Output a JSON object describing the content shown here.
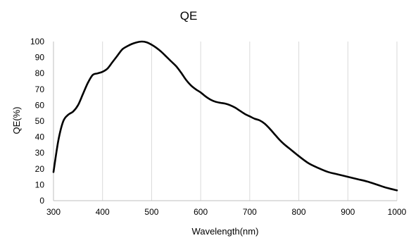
{
  "chart_data": {
    "type": "line",
    "title": "QE",
    "xlabel": "Wavelength(nm)",
    "ylabel": "QE(%)",
    "xlim": [
      300,
      1000
    ],
    "ylim": [
      0,
      100
    ],
    "x_ticks": [
      300,
      400,
      500,
      600,
      700,
      800,
      900,
      1000
    ],
    "y_ticks": [
      0,
      10,
      20,
      30,
      40,
      50,
      60,
      70,
      80,
      90,
      100
    ],
    "grid": "vertical",
    "series_color": "#000000",
    "series": [
      {
        "x": [
          300,
          310,
          320,
          330,
          340,
          350,
          360,
          370,
          380,
          390,
          400,
          410,
          420,
          430,
          440,
          450,
          460,
          470,
          480,
          490,
          500,
          510,
          520,
          530,
          540,
          550,
          560,
          570,
          580,
          590,
          600,
          610,
          620,
          630,
          640,
          650,
          660,
          670,
          680,
          690,
          700,
          710,
          720,
          730,
          740,
          750,
          760,
          770,
          780,
          790,
          800,
          820,
          840,
          860,
          880,
          900,
          920,
          940,
          960,
          980,
          1000
        ],
        "y": [
          18,
          38,
          50,
          54,
          56,
          60,
          67,
          74,
          79,
          80,
          81,
          83,
          87,
          91,
          95,
          97,
          98.5,
          99.5,
          100,
          99.5,
          98,
          96,
          93.5,
          90.5,
          87.5,
          84.5,
          80.5,
          76,
          72.5,
          70,
          68,
          65.5,
          63.5,
          62.2,
          61.5,
          61,
          60,
          58.5,
          56.5,
          54.5,
          53,
          51.5,
          50.5,
          48.5,
          45.5,
          42,
          38.5,
          35.5,
          33,
          30.5,
          28,
          23.5,
          20.5,
          18,
          16.5,
          15,
          13.5,
          12,
          10,
          8,
          6.5
        ]
      }
    ]
  }
}
